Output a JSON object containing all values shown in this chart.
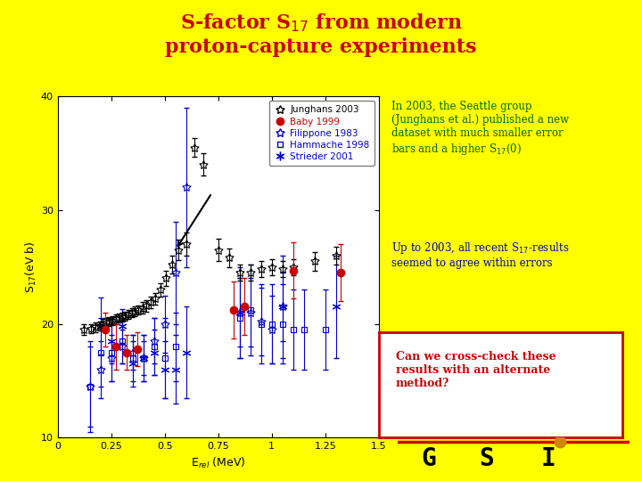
{
  "title_color": "#cc0000",
  "bg_color": "#ffff00",
  "plot_bg": "#ffffff",
  "xlim": [
    0,
    1.5
  ],
  "ylim": [
    10,
    40
  ],
  "yticks": [
    10,
    20,
    30,
    40
  ],
  "xticks": [
    0,
    0.25,
    0.5,
    0.75,
    1.0,
    1.25,
    1.5
  ],
  "junghans2003_x": [
    0.12,
    0.155,
    0.175,
    0.195,
    0.21,
    0.225,
    0.24,
    0.255,
    0.27,
    0.285,
    0.3,
    0.315,
    0.33,
    0.345,
    0.36,
    0.375,
    0.395,
    0.415,
    0.435,
    0.455,
    0.48,
    0.505,
    0.535,
    0.565,
    0.6,
    0.64,
    0.68,
    0.75,
    0.8,
    0.85,
    0.9,
    0.95,
    1.0,
    1.05,
    1.1,
    1.2,
    1.3
  ],
  "junghans2003_y": [
    19.5,
    19.6,
    19.7,
    19.8,
    20.0,
    20.1,
    20.2,
    20.3,
    20.4,
    20.5,
    20.6,
    20.7,
    20.8,
    21.0,
    21.1,
    21.2,
    21.4,
    21.6,
    21.9,
    22.2,
    23.0,
    24.0,
    25.2,
    26.5,
    27.0,
    35.5,
    34.0,
    26.5,
    25.8,
    24.5,
    24.5,
    24.8,
    25.0,
    24.8,
    25.0,
    25.5,
    26.0
  ],
  "junghans2003_yerr": [
    0.5,
    0.4,
    0.4,
    0.4,
    0.4,
    0.4,
    0.4,
    0.4,
    0.4,
    0.4,
    0.4,
    0.4,
    0.4,
    0.4,
    0.4,
    0.4,
    0.5,
    0.5,
    0.5,
    0.5,
    0.6,
    0.7,
    0.8,
    0.9,
    1.0,
    0.8,
    1.0,
    1.0,
    0.8,
    0.7,
    0.7,
    0.7,
    0.7,
    0.7,
    0.7,
    0.8,
    0.8
  ],
  "baby1999_x": [
    0.22,
    0.27,
    0.32,
    0.37,
    0.82,
    0.87,
    1.1,
    1.32
  ],
  "baby1999_y": [
    19.5,
    18.0,
    17.5,
    17.8,
    21.2,
    21.5,
    24.7,
    24.5
  ],
  "baby1999_yerr": [
    1.5,
    2.0,
    1.5,
    1.5,
    2.5,
    2.5,
    2.5,
    2.5
  ],
  "filippone1983_x": [
    0.15,
    0.2,
    0.25,
    0.3,
    0.35,
    0.4,
    0.45,
    0.5,
    0.55,
    0.6,
    0.85,
    0.9,
    0.95,
    1.0,
    1.05
  ],
  "filippone1983_y": [
    14.5,
    16.0,
    17.0,
    18.0,
    17.5,
    17.0,
    18.5,
    20.0,
    24.5,
    32.0,
    21.0,
    21.0,
    20.2,
    19.5,
    21.5
  ],
  "filippone1983_yerr": [
    3.5,
    2.5,
    2.0,
    1.5,
    1.5,
    1.5,
    2.0,
    2.5,
    4.5,
    7.0,
    3.0,
    3.0,
    3.0,
    3.0,
    3.0
  ],
  "hammache1998_x": [
    0.15,
    0.2,
    0.25,
    0.3,
    0.35,
    0.4,
    0.45,
    0.5,
    0.55,
    0.85,
    0.9,
    0.95,
    1.0,
    1.05,
    1.1,
    1.15,
    1.25
  ],
  "hammache1998_y": [
    14.5,
    17.5,
    17.5,
    18.5,
    17.0,
    17.0,
    18.0,
    17.0,
    18.0,
    20.5,
    21.2,
    20.0,
    20.0,
    20.0,
    19.5,
    19.5,
    19.5
  ],
  "hammache1998_yerr": [
    4.0,
    3.0,
    2.5,
    2.0,
    2.0,
    2.0,
    2.5,
    3.5,
    3.0,
    3.5,
    4.0,
    3.5,
    3.5,
    3.5,
    3.5,
    3.5,
    3.5
  ],
  "strieder2001_x": [
    0.2,
    0.25,
    0.3,
    0.35,
    0.4,
    0.45,
    0.5,
    0.55,
    0.6,
    0.85,
    1.05,
    1.3
  ],
  "strieder2001_y": [
    19.8,
    18.5,
    19.8,
    16.5,
    17.0,
    17.5,
    16.0,
    16.0,
    17.5,
    21.0,
    21.5,
    21.5
  ],
  "strieder2001_yerr": [
    2.5,
    2.0,
    1.5,
    2.0,
    2.0,
    2.0,
    2.5,
    3.0,
    4.0,
    4.0,
    4.5,
    4.5
  ]
}
